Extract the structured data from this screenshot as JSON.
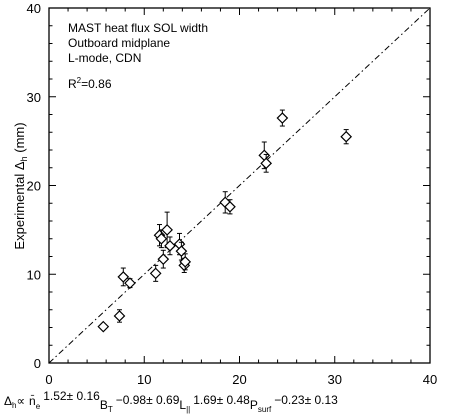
{
  "chart_data": {
    "type": "scatter",
    "ylabel_main": "Experimental Δ",
    "ylabel_sub": "h",
    "ylabel_unit": " (mm)",
    "xlim": [
      0,
      40
    ],
    "ylim": [
      0,
      40
    ],
    "x_ticks": [
      0,
      10,
      20,
      30,
      40
    ],
    "y_ticks": [
      0,
      10,
      20,
      30,
      40
    ],
    "annotation": {
      "line1": "MAST heat flux SOL width",
      "line2": "Outboard midplane",
      "line3": "L-mode, CDN",
      "r2_label": "R",
      "r2_sup": "2",
      "r2_value": "=0.86"
    },
    "reference_line": {
      "style": "dash-dot",
      "from": [
        0,
        0
      ],
      "to": [
        40,
        40
      ]
    },
    "formula": {
      "lhs": "Δ",
      "lhs_sub": "h",
      "prop": "∝",
      "n": "n̄",
      "n_sub": "e",
      "n_exp": "1.52± 0.16",
      "b": "B",
      "b_sub": "T",
      "b_exp": "−0.98± 0.69",
      "l": "L",
      "l_sub": "||",
      "l_exp": "1.69± 0.48",
      "p": "P",
      "p_sub": "surf",
      "p_exp": "−0.23± 0.13"
    },
    "points": [
      {
        "x": 5.7,
        "y": 4.1,
        "err": 0.3
      },
      {
        "x": 7.4,
        "y": 5.3,
        "err": 0.7
      },
      {
        "x": 7.8,
        "y": 9.7,
        "err": 1.0
      },
      {
        "x": 8.5,
        "y": 9.0,
        "err": 0.5
      },
      {
        "x": 11.2,
        "y": 10.1,
        "err": 0.9
      },
      {
        "x": 11.6,
        "y": 14.4,
        "err": 1.2
      },
      {
        "x": 11.8,
        "y": 14.0,
        "err": 1.0
      },
      {
        "x": 12.0,
        "y": 11.7,
        "err": 1.0
      },
      {
        "x": 12.4,
        "y": 15.0,
        "err": 2.0
      },
      {
        "x": 12.7,
        "y": 13.2,
        "err": 1.0
      },
      {
        "x": 13.7,
        "y": 13.4,
        "err": 1.2
      },
      {
        "x": 13.9,
        "y": 12.6,
        "err": 1.0
      },
      {
        "x": 14.2,
        "y": 11.0,
        "err": 0.8
      },
      {
        "x": 14.3,
        "y": 11.4,
        "err": 0.9
      },
      {
        "x": 18.5,
        "y": 18.1,
        "err": 1.2
      },
      {
        "x": 19.0,
        "y": 17.6,
        "err": 0.8
      },
      {
        "x": 22.6,
        "y": 23.4,
        "err": 1.5
      },
      {
        "x": 22.8,
        "y": 22.5,
        "err": 1.0
      },
      {
        "x": 24.5,
        "y": 27.6,
        "err": 0.9
      },
      {
        "x": 31.2,
        "y": 25.5,
        "err": 0.8
      }
    ]
  }
}
